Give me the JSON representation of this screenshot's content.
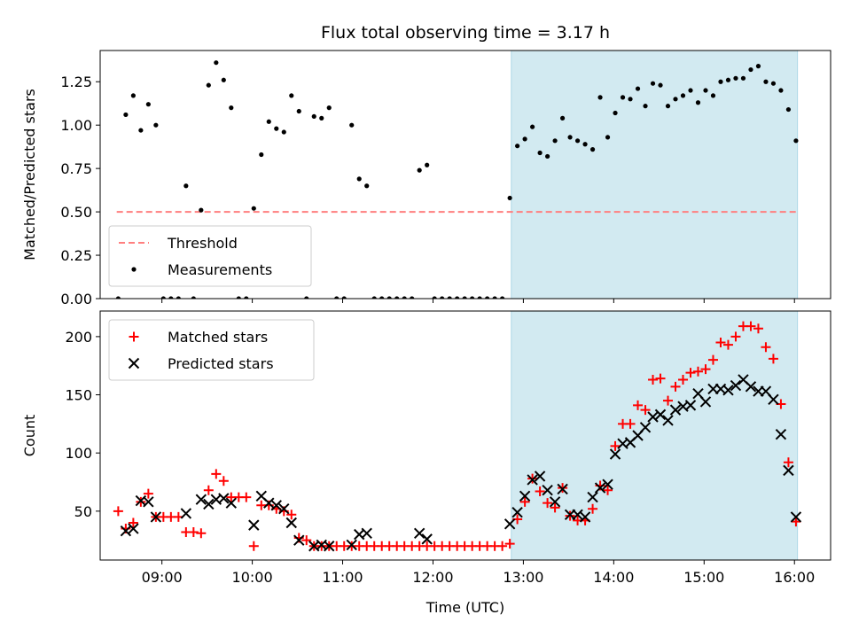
{
  "title": "Flux total observing time = 3.17 h",
  "chart_data": [
    {
      "type": "scatter",
      "ylabel": "Matched/Predicted stars",
      "xlabel": "",
      "xlim": [
        "08:19",
        "16:24"
      ],
      "ylim": [
        0,
        1.43
      ],
      "yticks": [
        "0.00",
        "0.25",
        "0.50",
        "0.75",
        "1.00",
        "1.25"
      ],
      "ytick_values": [
        0,
        0.25,
        0.5,
        0.75,
        1.0,
        1.25
      ],
      "xticks": [
        "09:00",
        "10:00",
        "11:00",
        "12:00",
        "13:00",
        "14:00",
        "15:00",
        "16:00"
      ],
      "shaded_region": {
        "start": "12:52",
        "end": "16:02",
        "color": "#add8e6"
      },
      "threshold": {
        "name": "Threshold",
        "value": 0.5,
        "start": "08:30",
        "end": "16:02",
        "color": "#ff7f7f"
      },
      "series": [
        {
          "name": "Measurements",
          "marker": "dot",
          "color": "#000000",
          "points": [
            [
              "08:31",
              0
            ],
            [
              "08:36",
              1.06
            ],
            [
              "08:41",
              1.17
            ],
            [
              "08:46",
              0.97
            ],
            [
              "08:51",
              1.12
            ],
            [
              "08:56",
              1.0
            ],
            [
              "09:01",
              0
            ],
            [
              "09:06",
              0
            ],
            [
              "09:11",
              0
            ],
            [
              "09:16",
              0.65
            ],
            [
              "09:21",
              0
            ],
            [
              "09:26",
              0.51
            ],
            [
              "09:31",
              1.23
            ],
            [
              "09:36",
              1.36
            ],
            [
              "09:41",
              1.26
            ],
            [
              "09:46",
              1.1
            ],
            [
              "09:51",
              0
            ],
            [
              "09:56",
              0
            ],
            [
              "10:01",
              0.52
            ],
            [
              "10:06",
              0.83
            ],
            [
              "10:11",
              1.02
            ],
            [
              "10:16",
              0.98
            ],
            [
              "10:21",
              0.96
            ],
            [
              "10:26",
              1.17
            ],
            [
              "10:31",
              1.08
            ],
            [
              "10:36",
              0
            ],
            [
              "10:41",
              1.05
            ],
            [
              "10:46",
              1.04
            ],
            [
              "10:51",
              1.1
            ],
            [
              "10:56",
              0
            ],
            [
              "11:01",
              0
            ],
            [
              "11:06",
              1.0
            ],
            [
              "11:11",
              0.69
            ],
            [
              "11:16",
              0.65
            ],
            [
              "11:21",
              0
            ],
            [
              "11:26",
              0
            ],
            [
              "11:31",
              0
            ],
            [
              "11:36",
              0
            ],
            [
              "11:41",
              0
            ],
            [
              "11:46",
              0
            ],
            [
              "11:51",
              0.74
            ],
            [
              "11:56",
              0.77
            ],
            [
              "12:01",
              0
            ],
            [
              "12:06",
              0
            ],
            [
              "12:11",
              0
            ],
            [
              "12:16",
              0
            ],
            [
              "12:21",
              0
            ],
            [
              "12:26",
              0
            ],
            [
              "12:31",
              0
            ],
            [
              "12:36",
              0
            ],
            [
              "12:41",
              0
            ],
            [
              "12:46",
              0
            ],
            [
              "12:51",
              0.58
            ],
            [
              "12:56",
              0.88
            ],
            [
              "13:01",
              0.92
            ],
            [
              "13:06",
              0.99
            ],
            [
              "13:11",
              0.84
            ],
            [
              "13:16",
              0.82
            ],
            [
              "13:21",
              0.91
            ],
            [
              "13:26",
              1.04
            ],
            [
              "13:31",
              0.93
            ],
            [
              "13:36",
              0.91
            ],
            [
              "13:41",
              0.89
            ],
            [
              "13:46",
              0.86
            ],
            [
              "13:51",
              1.16
            ],
            [
              "13:56",
              0.93
            ],
            [
              "14:01",
              1.07
            ],
            [
              "14:06",
              1.16
            ],
            [
              "14:11",
              1.15
            ],
            [
              "14:16",
              1.21
            ],
            [
              "14:21",
              1.11
            ],
            [
              "14:26",
              1.24
            ],
            [
              "14:31",
              1.23
            ],
            [
              "14:36",
              1.11
            ],
            [
              "14:41",
              1.15
            ],
            [
              "14:46",
              1.17
            ],
            [
              "14:51",
              1.2
            ],
            [
              "14:56",
              1.13
            ],
            [
              "15:01",
              1.2
            ],
            [
              "15:06",
              1.17
            ],
            [
              "15:11",
              1.25
            ],
            [
              "15:16",
              1.26
            ],
            [
              "15:21",
              1.27
            ],
            [
              "15:26",
              1.27
            ],
            [
              "15:31",
              1.32
            ],
            [
              "15:36",
              1.34
            ],
            [
              "15:41",
              1.25
            ],
            [
              "15:46",
              1.24
            ],
            [
              "15:51",
              1.2
            ],
            [
              "15:56",
              1.09
            ],
            [
              "16:01",
              0.91
            ]
          ]
        }
      ],
      "legend": {
        "placement": "lower-left",
        "entries": [
          "Threshold",
          "Measurements"
        ]
      }
    },
    {
      "type": "scatter",
      "ylabel": "Count",
      "xlabel": "Time (UTC)",
      "xlim": [
        "08:19",
        "16:24"
      ],
      "ylim": [
        8,
        222
      ],
      "yticks": [
        "50",
        "100",
        "150",
        "200"
      ],
      "ytick_values": [
        50,
        100,
        150,
        200
      ],
      "xticks": [
        "09:00",
        "10:00",
        "11:00",
        "12:00",
        "13:00",
        "14:00",
        "15:00",
        "16:00"
      ],
      "shaded_region": {
        "start": "12:52",
        "end": "16:02",
        "color": "#add8e6"
      },
      "series": [
        {
          "name": "Matched stars",
          "marker": "plus",
          "color": "#ff0000",
          "points": [
            [
              "08:31",
              50
            ],
            [
              "08:36",
              35
            ],
            [
              "08:41",
              40
            ],
            [
              "08:46",
              58
            ],
            [
              "08:51",
              65
            ],
            [
              "08:56",
              45
            ],
            [
              "09:01",
              45
            ],
            [
              "09:06",
              45
            ],
            [
              "09:11",
              45
            ],
            [
              "09:16",
              32
            ],
            [
              "09:21",
              32
            ],
            [
              "09:26",
              31
            ],
            [
              "09:31",
              68
            ],
            [
              "09:36",
              82
            ],
            [
              "09:41",
              76
            ],
            [
              "09:46",
              62
            ],
            [
              "09:51",
              62
            ],
            [
              "09:56",
              62
            ],
            [
              "10:01",
              20
            ],
            [
              "10:06",
              55
            ],
            [
              "10:11",
              55
            ],
            [
              "10:16",
              52
            ],
            [
              "10:21",
              50
            ],
            [
              "10:26",
              47
            ],
            [
              "10:31",
              27
            ],
            [
              "10:36",
              25
            ],
            [
              "10:41",
              20
            ],
            [
              "10:46",
              20
            ],
            [
              "10:51",
              20
            ],
            [
              "10:56",
              20
            ],
            [
              "11:01",
              20
            ],
            [
              "11:06",
              20
            ],
            [
              "11:11",
              20
            ],
            [
              "11:16",
              20
            ],
            [
              "11:21",
              20
            ],
            [
              "11:26",
              20
            ],
            [
              "11:31",
              20
            ],
            [
              "11:36",
              20
            ],
            [
              "11:41",
              20
            ],
            [
              "11:46",
              20
            ],
            [
              "11:51",
              20
            ],
            [
              "11:56",
              20
            ],
            [
              "12:01",
              20
            ],
            [
              "12:06",
              20
            ],
            [
              "12:11",
              20
            ],
            [
              "12:16",
              20
            ],
            [
              "12:21",
              20
            ],
            [
              "12:26",
              20
            ],
            [
              "12:31",
              20
            ],
            [
              "12:36",
              20
            ],
            [
              "12:41",
              20
            ],
            [
              "12:46",
              20
            ],
            [
              "12:51",
              22
            ],
            [
              "12:56",
              43
            ],
            [
              "13:01",
              58
            ],
            [
              "13:06",
              78
            ],
            [
              "13:11",
              67
            ],
            [
              "13:16",
              57
            ],
            [
              "13:21",
              53
            ],
            [
              "13:26",
              70
            ],
            [
              "13:31",
              46
            ],
            [
              "13:36",
              42
            ],
            [
              "13:41",
              42
            ],
            [
              "13:46",
              52
            ],
            [
              "13:51",
              72
            ],
            [
              "13:56",
              68
            ],
            [
              "14:01",
              106
            ],
            [
              "14:06",
              125
            ],
            [
              "14:11",
              125
            ],
            [
              "14:16",
              141
            ],
            [
              "14:21",
              137
            ],
            [
              "14:26",
              163
            ],
            [
              "14:31",
              164
            ],
            [
              "14:36",
              145
            ],
            [
              "14:41",
              157
            ],
            [
              "14:46",
              163
            ],
            [
              "14:51",
              169
            ],
            [
              "14:56",
              170
            ],
            [
              "15:01",
              172
            ],
            [
              "15:06",
              180
            ],
            [
              "15:11",
              195
            ],
            [
              "15:16",
              193
            ],
            [
              "15:21",
              200
            ],
            [
              "15:26",
              209
            ],
            [
              "15:31",
              209
            ],
            [
              "15:36",
              207
            ],
            [
              "15:41",
              191
            ],
            [
              "15:46",
              181
            ],
            [
              "15:51",
              142
            ],
            [
              "15:56",
              92
            ],
            [
              "16:01",
              41
            ]
          ]
        },
        {
          "name": "Predicted stars",
          "marker": "x",
          "color": "#000000",
          "points": [
            [
              "08:36",
              33
            ],
            [
              "08:41",
              35
            ],
            [
              "08:46",
              59
            ],
            [
              "08:51",
              58
            ],
            [
              "08:56",
              45
            ],
            [
              "09:16",
              48
            ],
            [
              "09:26",
              60
            ],
            [
              "09:31",
              56
            ],
            [
              "09:36",
              60
            ],
            [
              "09:41",
              61
            ],
            [
              "09:46",
              57
            ],
            [
              "10:01",
              38
            ],
            [
              "10:06",
              63
            ],
            [
              "10:11",
              57
            ],
            [
              "10:16",
              55
            ],
            [
              "10:21",
              52
            ],
            [
              "10:26",
              40
            ],
            [
              "10:31",
              25
            ],
            [
              "10:41",
              20
            ],
            [
              "10:46",
              21
            ],
            [
              "10:51",
              20
            ],
            [
              "11:06",
              21
            ],
            [
              "11:11",
              30
            ],
            [
              "11:16",
              31
            ],
            [
              "11:51",
              31
            ],
            [
              "11:56",
              26
            ],
            [
              "12:51",
              39
            ],
            [
              "12:56",
              49
            ],
            [
              "13:01",
              63
            ],
            [
              "13:06",
              77
            ],
            [
              "13:11",
              80
            ],
            [
              "13:16",
              68
            ],
            [
              "13:21",
              58
            ],
            [
              "13:26",
              69
            ],
            [
              "13:31",
              47
            ],
            [
              "13:36",
              47
            ],
            [
              "13:41",
              45
            ],
            [
              "13:46",
              62
            ],
            [
              "13:51",
              70
            ],
            [
              "13:56",
              73
            ],
            [
              "14:01",
              99
            ],
            [
              "14:06",
              108
            ],
            [
              "14:11",
              109
            ],
            [
              "14:16",
              115
            ],
            [
              "14:21",
              122
            ],
            [
              "14:26",
              131
            ],
            [
              "14:31",
              133
            ],
            [
              "14:36",
              128
            ],
            [
              "14:41",
              137
            ],
            [
              "14:46",
              140
            ],
            [
              "14:51",
              141
            ],
            [
              "14:56",
              151
            ],
            [
              "15:01",
              144
            ],
            [
              "15:06",
              155
            ],
            [
              "15:11",
              155
            ],
            [
              "15:16",
              154
            ],
            [
              "15:21",
              158
            ],
            [
              "15:26",
              163
            ],
            [
              "15:31",
              157
            ],
            [
              "15:36",
              153
            ],
            [
              "15:41",
              153
            ],
            [
              "15:46",
              146
            ],
            [
              "15:51",
              116
            ],
            [
              "15:56",
              85
            ],
            [
              "16:01",
              45
            ]
          ]
        }
      ],
      "legend": {
        "placement": "top-left",
        "entries": [
          "Matched stars",
          "Predicted stars"
        ]
      }
    }
  ]
}
